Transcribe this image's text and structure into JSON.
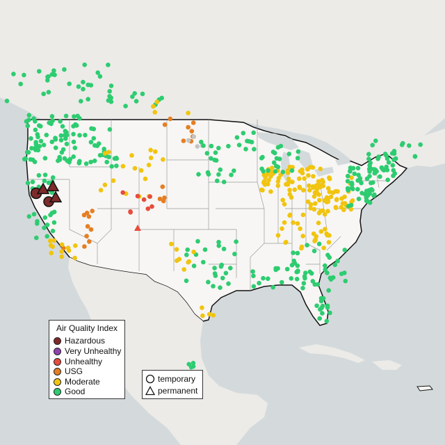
{
  "legend": {
    "title": "Air Quality Index",
    "categories": [
      {
        "label": "Hazardous",
        "color": "#7e2a2a"
      },
      {
        "label": "Very Unhealthy",
        "color": "#8e44ad"
      },
      {
        "label": "Unhealthy",
        "color": "#e74c3c"
      },
      {
        "label": "USG",
        "color": "#e67e22"
      },
      {
        "label": "Moderate",
        "color": "#f1c40f"
      },
      {
        "label": "Good",
        "color": "#2ecc71"
      }
    ]
  },
  "monitor_types": {
    "items": [
      {
        "label": "temporary",
        "shape": "circle"
      },
      {
        "label": "permanent",
        "shape": "triangle"
      }
    ]
  },
  "map_colors": {
    "water": "#d4dadc",
    "land": "#f2f0ee",
    "us_land": "#f7f6f4",
    "border": "#111111",
    "state_lines": "#9a9a9a",
    "no_data": "#c4c4c4"
  }
}
